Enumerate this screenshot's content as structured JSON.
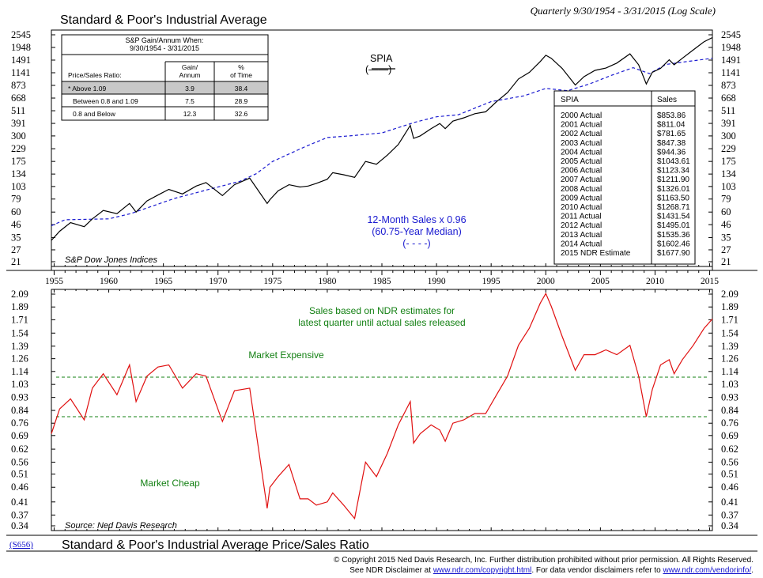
{
  "header": {
    "title": "Standard & Poor's Industrial Average",
    "subtitle": "Quarterly 9/30/1954 - 3/31/2015 (Log Scale)"
  },
  "footer": {
    "code": "(S656)",
    "title": "Standard & Poor's Industrial Average Price/Sales Ratio",
    "copyright": "© Copyright 2015 Ned Davis Research, Inc.  Further distribution prohibited without prior permission.  All Rights Reserved.",
    "disclaimer_prefix": "See NDR Disclaimer at ",
    "disclaimer_link": "www.ndr.com/copyright.html",
    "disclaimer_mid": ".  For data vendor disclaimers refer to ",
    "vendor_link": "www.ndr.com/vendorinfo/",
    "disclaimer_end": "."
  },
  "gain_table": {
    "title_line1": "S&P Gain/Annum When:",
    "title_line2": "9/30/1954 - 3/31/2015",
    "col_label": "Price/Sales Ratio:",
    "col_gain": [
      "Gain/",
      "Annum"
    ],
    "col_pct": [
      "%",
      "of Time"
    ],
    "rows": [
      {
        "label": "* Above 1.09",
        "gain": "3.9",
        "pct": "38.4"
      },
      {
        "label": "Between 0.8 and 1.09",
        "gain": "7.5",
        "pct": "28.9"
      },
      {
        "label": "0.8 and Below",
        "gain": "12.3",
        "pct": "32.6"
      }
    ]
  },
  "sales_table": {
    "col1": "SPIA",
    "col2": "Sales",
    "rows": [
      [
        "2000 Actual",
        "$853.86"
      ],
      [
        "2001 Actual",
        "$811.04"
      ],
      [
        "2002 Actual",
        "$781.65"
      ],
      [
        "2003 Actual",
        "$847.38"
      ],
      [
        "2004 Actual",
        "$944.36"
      ],
      [
        "2005 Actual",
        "$1043.61"
      ],
      [
        "2006 Actual",
        "$1123.34"
      ],
      [
        "2007 Actual",
        "$1211.90"
      ],
      [
        "2008 Actual",
        "$1326.01"
      ],
      [
        "2009 Actual",
        "$1163.50"
      ],
      [
        "2010 Actual",
        "$1268.71"
      ],
      [
        "2011 Actual",
        "$1431.54"
      ],
      [
        "2012 Actual",
        "$1495.01"
      ],
      [
        "2013 Actual",
        "$1535.36"
      ],
      [
        "2014 Actual",
        "$1602.46"
      ],
      [
        "2015 NDR Estimate",
        "$1677.90"
      ]
    ]
  },
  "colors": {
    "price": "#000000",
    "sales": "#1a1ad0",
    "ratio": "#e01010",
    "annotation": "#138013",
    "threshold": "#138013"
  },
  "chart_data": [
    {
      "type": "line",
      "title": "Standard & Poor's Industrial Average",
      "scale": "log",
      "ylim": [
        21,
        2545
      ],
      "yticks": [
        2545,
        1948,
        1491,
        1141,
        873,
        668,
        511,
        391,
        300,
        229,
        175,
        134,
        103,
        79,
        60,
        46,
        35,
        27,
        21
      ],
      "xlim": [
        1954.75,
        2015.25
      ],
      "xticks": [
        1955,
        1960,
        1965,
        1970,
        1975,
        1980,
        1985,
        1990,
        1995,
        2000,
        2005,
        2010,
        2015
      ],
      "source": "S&P Dow Jones Indices",
      "legend_spia": "SPIA",
      "legend_spia_sym": "(——)",
      "legend_sales": [
        "12-Month Sales x 0.96",
        "(60.75-Year Median)",
        "(- - - -)"
      ],
      "series": [
        {
          "name": "SPIA",
          "style": "solid",
          "x": [
            1954.75,
            1955.5,
            1956.5,
            1957.75,
            1958.5,
            1959.5,
            1960.75,
            1961.9,
            1962.5,
            1963.5,
            1964.5,
            1965.5,
            1966.75,
            1968,
            1968.9,
            1970.4,
            1971.5,
            1972.9,
            1974.5,
            1974.75,
            1975.5,
            1976.5,
            1977.5,
            1978.25,
            1979,
            1980,
            1980.5,
            1981.5,
            1982.5,
            1983.5,
            1984.5,
            1985.5,
            1986.5,
            1987.6,
            1987.9,
            1988.5,
            1989.5,
            1990.3,
            1990.8,
            1991.5,
            1992.5,
            1993.5,
            1994.5,
            1995.5,
            1996.5,
            1997.5,
            1998.5,
            1999.5,
            2000.0,
            2000.5,
            2001.5,
            2002.7,
            2003.5,
            2004.5,
            2005.5,
            2006.5,
            2007.7,
            2008.5,
            2009.2,
            2009.75,
            2010.5,
            2011.3,
            2011.75,
            2012.5,
            2013.5,
            2014.5,
            2015.25
          ],
          "y": [
            33,
            40,
            48,
            44,
            52,
            62,
            58,
            72,
            60,
            76,
            86,
            97,
            88,
            104,
            112,
            85,
            107,
            123,
            72,
            78,
            94,
            107,
            102,
            104,
            110,
            120,
            138,
            132,
            125,
            175,
            165,
            200,
            250,
            375,
            285,
            300,
            350,
            390,
            350,
            410,
            440,
            480,
            500,
            620,
            750,
            1000,
            1150,
            1450,
            1650,
            1550,
            1250,
            880,
            1050,
            1200,
            1260,
            1400,
            1700,
            1350,
            900,
            1150,
            1250,
            1500,
            1350,
            1550,
            1850,
            2200,
            2400
          ]
        },
        {
          "name": "12-Month Sales x 0.96",
          "style": "dashed",
          "x": [
            1954.75,
            1956,
            1960,
            1962,
            1966,
            1970,
            1972,
            1973.5,
            1975,
            1978,
            1980,
            1982,
            1985,
            1988,
            1990,
            1992,
            1995,
            1998,
            2000,
            2002,
            2004,
            2006,
            2008,
            2009.5,
            2011,
            2013,
            2015.25
          ],
          "y": [
            45,
            51,
            52,
            58,
            80,
            102,
            115,
            135,
            175,
            240,
            290,
            300,
            320,
            400,
            450,
            470,
            620,
            700,
            820,
            780,
            900,
            1080,
            1270,
            1120,
            1360,
            1450,
            1550
          ]
        }
      ],
      "table_title": "SPIA / Sales"
    },
    {
      "type": "line",
      "title": "Standard & Poor's Industrial Average Price/Sales Ratio",
      "scale": "log",
      "ylim": [
        0.34,
        2.09
      ],
      "yticks": [
        2.09,
        1.89,
        1.71,
        1.54,
        1.39,
        1.26,
        1.14,
        1.03,
        0.93,
        0.84,
        0.76,
        0.69,
        0.62,
        0.56,
        0.51,
        0.46,
        0.41,
        0.37,
        0.34
      ],
      "xlim": [
        1954.75,
        2015.25
      ],
      "thresholds": [
        1.09,
        0.8
      ],
      "annotations": [
        "Sales based on NDR estimates for",
        "latest quarter until actual sales released",
        "Market Expensive",
        "Market Cheap"
      ],
      "source": "Source: Ned Davis Research",
      "series": [
        {
          "name": "Price/Sales Ratio",
          "style": "solid",
          "x": [
            1954.75,
            1955.5,
            1956.5,
            1957.75,
            1958.5,
            1959.5,
            1960.75,
            1961.9,
            1962.5,
            1963.5,
            1964.5,
            1965.5,
            1966.75,
            1968,
            1968.9,
            1970.4,
            1971.5,
            1972.9,
            1974.5,
            1974.75,
            1975.5,
            1976.5,
            1977.5,
            1978.25,
            1979,
            1980,
            1980.5,
            1981.5,
            1982.5,
            1983.5,
            1984.5,
            1985.5,
            1986.5,
            1987.6,
            1987.9,
            1988.5,
            1989.5,
            1990.3,
            1990.8,
            1991.5,
            1992.5,
            1993.5,
            1994.5,
            1995.5,
            1996.5,
            1997.5,
            1998.5,
            1999.5,
            2000.0,
            2000.5,
            2001.5,
            2002.7,
            2003.5,
            2004.5,
            2005.5,
            2006.5,
            2007.7,
            2008.5,
            2009.2,
            2009.75,
            2010.5,
            2011.3,
            2011.75,
            2012.5,
            2013.5,
            2014.5,
            2015.25
          ],
          "y": [
            0.7,
            0.85,
            0.92,
            0.78,
            1.0,
            1.12,
            0.95,
            1.2,
            0.9,
            1.1,
            1.18,
            1.2,
            1.0,
            1.12,
            1.1,
            0.77,
            0.98,
            1.0,
            0.39,
            0.46,
            0.5,
            0.55,
            0.42,
            0.42,
            0.4,
            0.41,
            0.44,
            0.4,
            0.36,
            0.56,
            0.5,
            0.6,
            0.75,
            0.9,
            0.65,
            0.7,
            0.75,
            0.72,
            0.66,
            0.76,
            0.78,
            0.82,
            0.82,
            0.95,
            1.1,
            1.4,
            1.6,
            1.95,
            2.1,
            1.9,
            1.5,
            1.15,
            1.3,
            1.3,
            1.35,
            1.3,
            1.4,
            1.1,
            0.8,
            0.99,
            1.2,
            1.25,
            1.12,
            1.25,
            1.4,
            1.6,
            1.72
          ]
        }
      ]
    }
  ]
}
